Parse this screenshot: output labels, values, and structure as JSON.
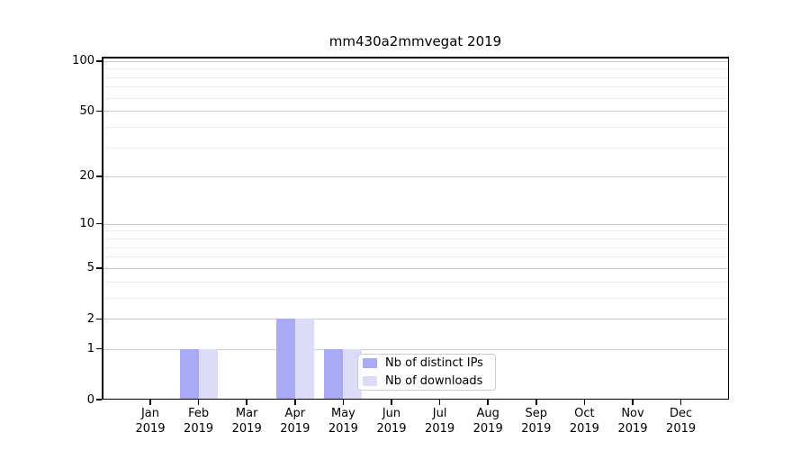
{
  "chart_data": {
    "type": "bar",
    "title": "mm430a2mmvegat 2019",
    "categories": [
      "Jan 2019",
      "Feb 2019",
      "Mar 2019",
      "Apr 2019",
      "May 2019",
      "Jun 2019",
      "Jul 2019",
      "Aug 2019",
      "Sep 2019",
      "Oct 2019",
      "Nov 2019",
      "Dec 2019"
    ],
    "x_tick_lines": [
      [
        "Jan",
        "2019"
      ],
      [
        "Feb",
        "2019"
      ],
      [
        "Mar",
        "2019"
      ],
      [
        "Apr",
        "2019"
      ],
      [
        "May",
        "2019"
      ],
      [
        "Jun",
        "2019"
      ],
      [
        "Jul",
        "2019"
      ],
      [
        "Aug",
        "2019"
      ],
      [
        "Sep",
        "2019"
      ],
      [
        "Oct",
        "2019"
      ],
      [
        "Nov",
        "2019"
      ],
      [
        "Dec",
        "2019"
      ]
    ],
    "series": [
      {
        "name": "Nb of distinct IPs",
        "color": "#a9aaf5",
        "values": [
          0,
          1,
          0,
          2,
          1,
          0,
          0,
          0,
          0,
          0,
          0,
          0
        ]
      },
      {
        "name": "Nb of downloads",
        "color": "#dcdcf9",
        "values": [
          0,
          1,
          0,
          2,
          1,
          0,
          0,
          0,
          0,
          0,
          0,
          0
        ]
      }
    ],
    "xlabel": "",
    "ylabel": "",
    "yscale": "log1p",
    "ylim": [
      0,
      106
    ],
    "yticks": [
      0,
      1,
      2,
      5,
      10,
      20,
      50,
      100
    ],
    "minor_grid_values": [
      3,
      4,
      6,
      7,
      8,
      9,
      30,
      40,
      60,
      70,
      80,
      90
    ],
    "grid": true,
    "legend_position": "lower right inside"
  },
  "colors": {
    "background": "#ffffff",
    "axis": "#000000",
    "text": "#000000",
    "grid_major": "#c9c9c9",
    "grid_minor": "#ededed",
    "legend_border": "#cccccc"
  }
}
